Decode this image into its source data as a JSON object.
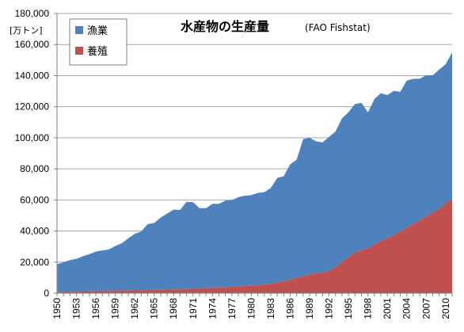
{
  "chart_data": {
    "type": "area",
    "stacked": true,
    "title": "水産物の生産量",
    "subtitle": "(FAO Fishstat)",
    "unit_label": "[万トン]",
    "xlabel": "",
    "ylabel": "",
    "ylim": [
      0,
      180000
    ],
    "yticks": [
      0,
      20000,
      40000,
      60000,
      80000,
      100000,
      120000,
      140000,
      160000,
      180000
    ],
    "ytick_labels": [
      "0",
      "20,000",
      "40,000",
      "60,000",
      "80,000",
      "100,000",
      "120,000",
      "140,000",
      "160,000",
      "180,000"
    ],
    "x_range": [
      1950,
      2011
    ],
    "x_tick_labels": [
      "1950",
      "1953",
      "1956",
      "1959",
      "1962",
      "1965",
      "1968",
      "1971",
      "1974",
      "1977",
      "1980",
      "1983",
      "1986",
      "1989",
      "1992",
      "1995",
      "1998",
      "2001",
      "2004",
      "2007",
      "2010"
    ],
    "grid": true,
    "legend_position": "top-left",
    "x": [
      1950,
      1951,
      1952,
      1953,
      1954,
      1955,
      1956,
      1957,
      1958,
      1959,
      1960,
      1961,
      1962,
      1963,
      1964,
      1965,
      1966,
      1967,
      1968,
      1969,
      1970,
      1971,
      1972,
      1973,
      1974,
      1975,
      1976,
      1977,
      1978,
      1979,
      1980,
      1981,
      1982,
      1983,
      1984,
      1985,
      1986,
      1987,
      1988,
      1989,
      1990,
      1991,
      1992,
      1993,
      1994,
      1995,
      1996,
      1997,
      1998,
      1999,
      2000,
      2001,
      2002,
      2003,
      2004,
      2005,
      2006,
      2007,
      2008,
      2009,
      2010,
      2011
    ],
    "series": [
      {
        "name": "養殖",
        "color": "#c0504d",
        "values": [
          600,
          700,
          800,
          900,
          1000,
          1100,
          1200,
          1300,
          1400,
          1500,
          1600,
          1700,
          1800,
          1900,
          2000,
          2100,
          2200,
          2300,
          2400,
          2500,
          2600,
          2800,
          3000,
          3200,
          3300,
          3500,
          3700,
          4000,
          4300,
          4600,
          4800,
          5000,
          5400,
          6000,
          6800,
          7600,
          8600,
          9600,
          10800,
          12000,
          12700,
          12900,
          14300,
          16500,
          19800,
          23100,
          26200,
          27600,
          28800,
          31000,
          33400,
          35200,
          37300,
          39600,
          42100,
          44300,
          46700,
          49200,
          51700,
          54200,
          57700,
          60400
        ]
      },
      {
        "name": "漁業",
        "color": "#4f81bd",
        "values": [
          18000,
          19200,
          20500,
          21200,
          22800,
          24000,
          25600,
          26200,
          26700,
          28900,
          30500,
          33600,
          36400,
          37800,
          42400,
          43000,
          46500,
          48900,
          51400,
          51100,
          56200,
          55800,
          51700,
          51500,
          54200,
          54000,
          55900,
          55900,
          57500,
          58100,
          58300,
          59500,
          59600,
          61700,
          67300,
          67700,
          74300,
          76300,
          88400,
          88000,
          85000,
          84100,
          86300,
          87500,
          92700,
          93400,
          95500,
          94900,
          87500,
          93900,
          95300,
          92300,
          92900,
          90000,
          94700,
          93600,
          91300,
          91000,
          88500,
          89700,
          89600,
          94500
        ]
      }
    ]
  }
}
